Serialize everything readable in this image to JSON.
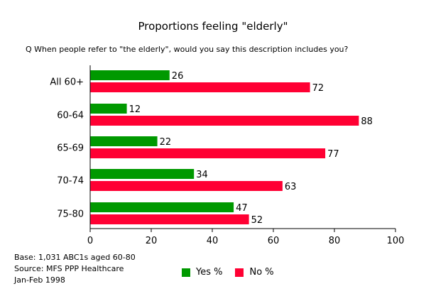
{
  "chart_data": {
    "type": "bar",
    "orientation": "horizontal",
    "title": "Proportions feeling \"elderly\"",
    "subtitle": "Q When people refer to \"the elderly\", would you say this description includes you?",
    "categories": [
      "All 60+",
      "60-64",
      "65-69",
      "70-74",
      "75-80"
    ],
    "series": [
      {
        "name": "Yes %",
        "color": "#009900",
        "values": [
          26,
          12,
          22,
          34,
          47
        ]
      },
      {
        "name": "No %",
        "color": "#ff0033",
        "values": [
          72,
          88,
          77,
          63,
          52
        ]
      }
    ],
    "xlim": [
      0,
      100
    ],
    "xticks": [
      0,
      20,
      40,
      60,
      80,
      100
    ],
    "grid": false,
    "legend_position": "bottom"
  },
  "footnote": {
    "base": "Base: 1,031 ABC1s aged 60-80",
    "source": "Source: MFS PPP Healthcare",
    "date": "Jan-Feb 1998"
  }
}
